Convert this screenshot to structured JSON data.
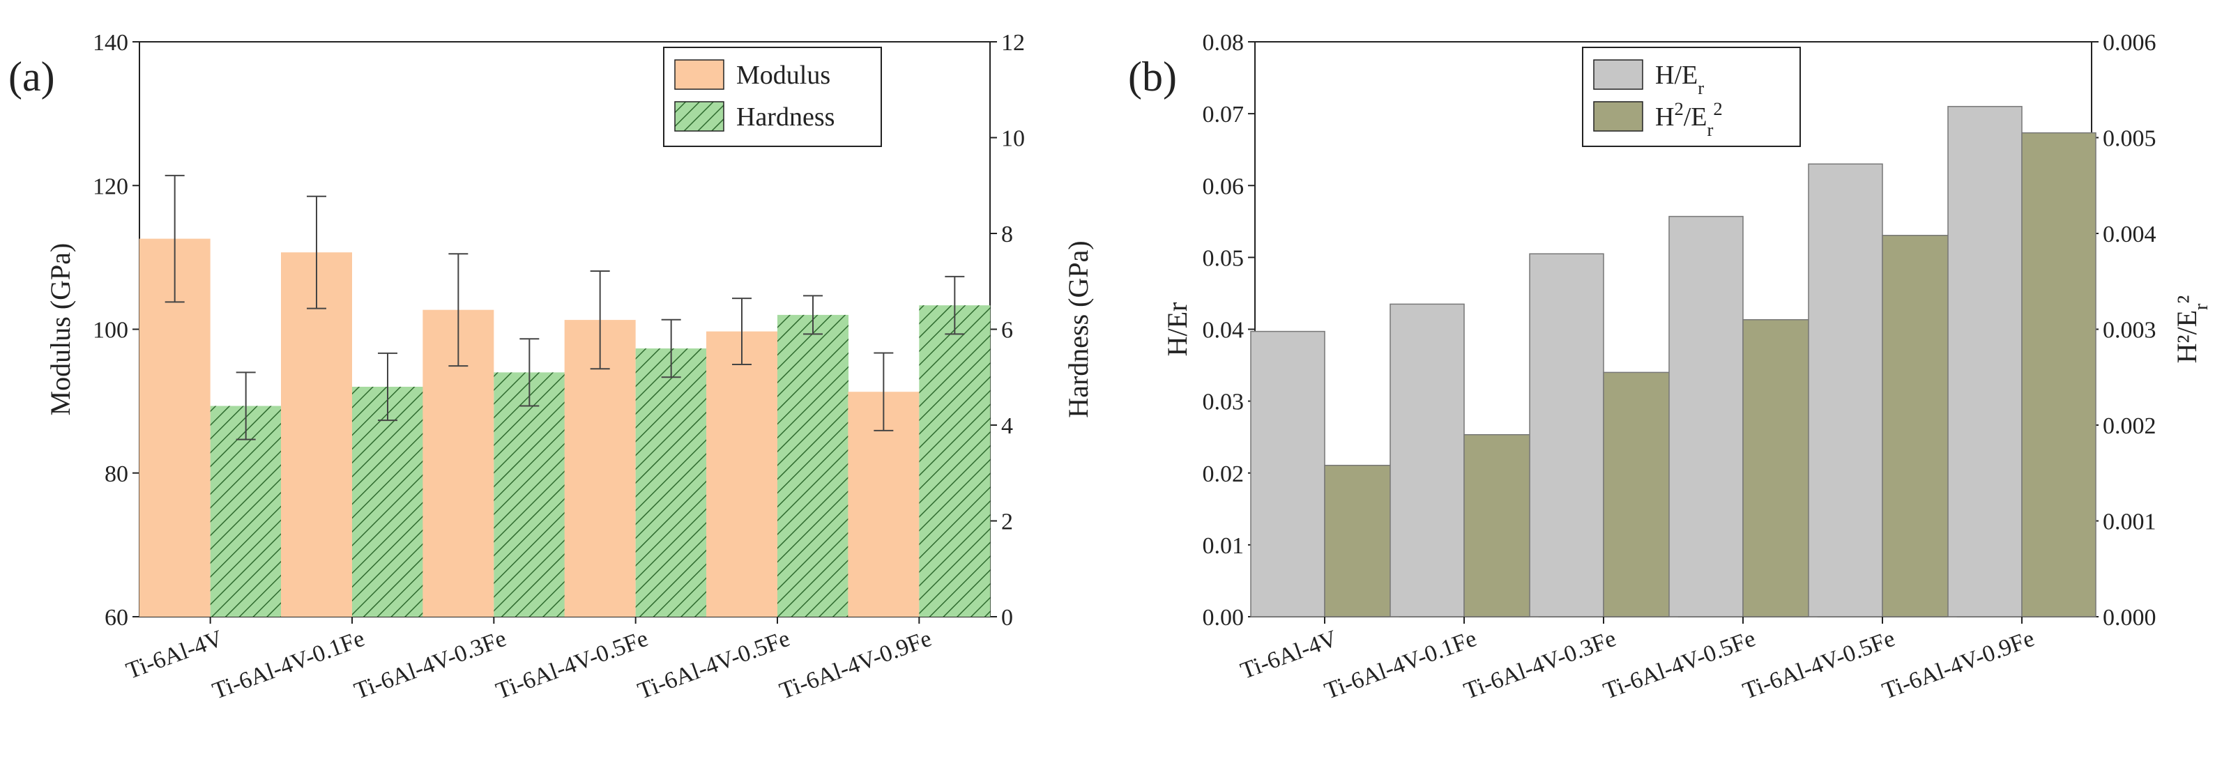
{
  "chart_data": [
    {
      "type": "bar",
      "panel_label": "(a)",
      "categories": [
        "Ti-6Al-4V",
        "Ti-6Al-4V-0.1Fe",
        "Ti-6Al-4V-0.3Fe",
        "Ti-6Al-4V-0.5Fe",
        "Ti-6Al-4V-0.5Fe",
        "Ti-6Al-4V-0.9Fe"
      ],
      "series": [
        {
          "name": "Modulus",
          "axis": "left",
          "values": [
            112.6,
            110.7,
            102.7,
            101.3,
            99.7,
            91.3
          ],
          "errors": [
            8.8,
            7.8,
            7.8,
            6.8,
            4.6,
            5.4
          ],
          "color": "#fcc9a0",
          "hatch": false
        },
        {
          "name": "Hardness",
          "axis": "right",
          "values": [
            4.4,
            4.8,
            5.1,
            5.6,
            6.3,
            6.5
          ],
          "errors": [
            0.7,
            0.7,
            0.7,
            0.6,
            0.4,
            0.6
          ],
          "color": "#a6dba0",
          "hatch": true
        }
      ],
      "left_axis": {
        "label": "Modulus (GPa)",
        "lim": [
          60,
          140
        ],
        "ticks": [
          60,
          80,
          100,
          120,
          140
        ]
      },
      "right_axis": {
        "label": "Hardness (GPa)",
        "lim": [
          0,
          12
        ],
        "ticks": [
          0,
          2,
          4,
          6,
          8,
          10,
          12
        ]
      },
      "legend_position": "top-right",
      "grid": false
    },
    {
      "type": "bar",
      "panel_label": "(b)",
      "categories": [
        "Ti-6Al-4V",
        "Ti-6Al-4V-0.1Fe",
        "Ti-6Al-4V-0.3Fe",
        "Ti-6Al-4V-0.5Fe",
        "Ti-6Al-4V-0.5Fe",
        "Ti-6Al-4V-0.9Fe"
      ],
      "series": [
        {
          "name": "H/E_r",
          "axis": "left",
          "values": [
            0.0397,
            0.0435,
            0.0505,
            0.0557,
            0.063,
            0.071
          ],
          "color": "#c6c6c6"
        },
        {
          "name": "H^2/E_r^2",
          "axis": "right",
          "values": [
            0.00158,
            0.0019,
            0.00255,
            0.0031,
            0.00398,
            0.00505
          ],
          "color": "#a3a47e"
        }
      ],
      "left_axis": {
        "label": "H/Er",
        "lim": [
          0,
          0.08
        ],
        "ticks": [
          "0.00",
          "0.01",
          "0.02",
          "0.03",
          "0.04",
          "0.05",
          "0.06",
          "0.07",
          "0.08"
        ]
      },
      "right_axis": {
        "label": "H²/E_r²",
        "lim": [
          0,
          0.006
        ],
        "ticks": [
          "0.000",
          "0.001",
          "0.002",
          "0.003",
          "0.004",
          "0.005",
          "0.006"
        ]
      },
      "legend_position": "top-left",
      "grid": false
    }
  ]
}
